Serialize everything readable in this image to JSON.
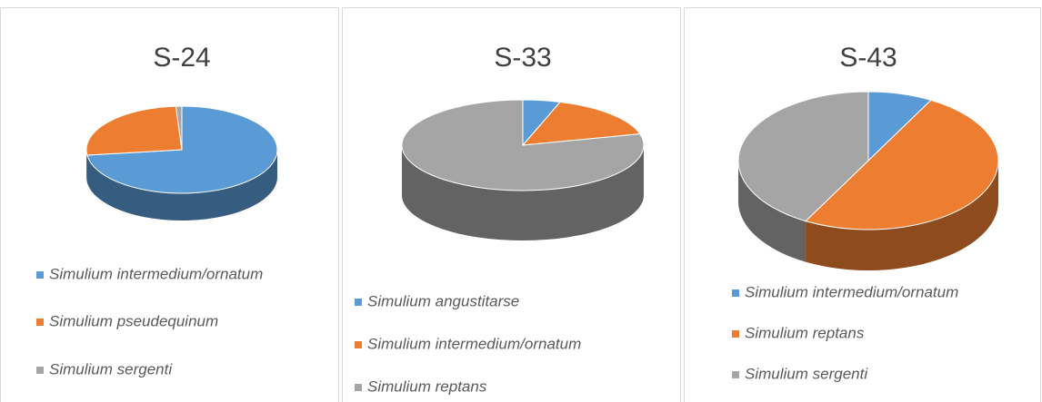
{
  "chart_data": [
    {
      "type": "pie",
      "title": "S-24",
      "categories": [
        "Simulium intermedium/ornatum",
        "Simulium pseudequinum",
        "Simulium sergenti"
      ],
      "values": [
        73,
        26,
        1
      ],
      "colors": [
        "#5b9bd5",
        "#ed7d31",
        "#a5a5a5"
      ]
    },
    {
      "type": "pie",
      "title": "S-33",
      "categories": [
        "Simulium angustitarse",
        "Simulium intermedium/ornatum",
        "Simulium reptans"
      ],
      "values": [
        5,
        16,
        79
      ],
      "colors": [
        "#5b9bd5",
        "#ed7d31",
        "#a5a5a5"
      ]
    },
    {
      "type": "pie",
      "title": "S-43",
      "categories": [
        "Simulium intermedium/ornatum",
        "Simulium reptans",
        "Simulium sergenti"
      ],
      "values": [
        8,
        50,
        42
      ],
      "colors": [
        "#5b9bd5",
        "#ed7d31",
        "#a5a5a5"
      ]
    }
  ]
}
